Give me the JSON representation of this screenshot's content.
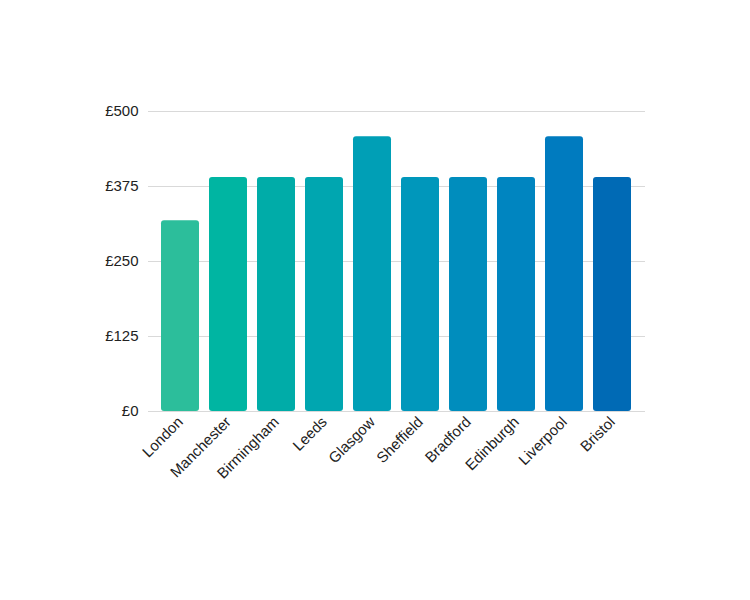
{
  "chart_data": {
    "type": "bar",
    "categories": [
      "London",
      "Manchester",
      "Birmingham",
      "Leeds",
      "Glasgow",
      "Sheffield",
      "Bradford",
      "Edinburgh",
      "Liverpool",
      "Bristol"
    ],
    "values": [
      318,
      390,
      390,
      390,
      458,
      390,
      390,
      390,
      458,
      390
    ],
    "colors": [
      "#2cbe9b",
      "#00b5a2",
      "#00aca8",
      "#00a6b0",
      "#009fb6",
      "#0097bb",
      "#008dbd",
      "#0085c0",
      "#007bbf",
      "#006ab5"
    ],
    "ylim": [
      0,
      500
    ],
    "yticks": [
      {
        "value": 0,
        "label": "£0"
      },
      {
        "value": 125,
        "label": "£125"
      },
      {
        "value": 250,
        "label": "£250"
      },
      {
        "value": 375,
        "label": "£375"
      },
      {
        "value": 500,
        "label": "£500"
      }
    ],
    "grid": true
  }
}
